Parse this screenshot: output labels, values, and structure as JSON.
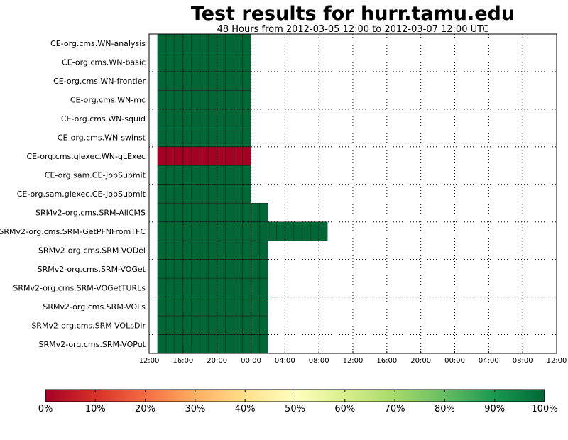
{
  "title": "Test results for hurr.tamu.edu",
  "subtitle": "48 Hours from 2012-03-05 12:00 to 2012-03-07 12:00 UTC",
  "chart_data": {
    "type": "heatmap",
    "x_range_hours": [
      0,
      48
    ],
    "x_tick_labels": [
      "12:00",
      "16:00",
      "20:00",
      "00:00",
      "04:00",
      "08:00",
      "12:00",
      "16:00",
      "20:00",
      "00:00",
      "04:00",
      "08:00",
      "12:00"
    ],
    "grid": true,
    "rows": [
      {
        "name": "CE-org.cms.WN-analysis",
        "start_hour": 1,
        "end_hour": 12,
        "value": 100
      },
      {
        "name": "CE-org.cms.WN-basic",
        "start_hour": 1,
        "end_hour": 12,
        "value": 100
      },
      {
        "name": "CE-org.cms.WN-frontier",
        "start_hour": 1,
        "end_hour": 12,
        "value": 100
      },
      {
        "name": "CE-org.cms.WN-mc",
        "start_hour": 1,
        "end_hour": 12,
        "value": 100
      },
      {
        "name": "CE-org.cms.WN-squid",
        "start_hour": 1,
        "end_hour": 12,
        "value": 100
      },
      {
        "name": "CE-org.cms.WN-swinst",
        "start_hour": 1,
        "end_hour": 12,
        "value": 100
      },
      {
        "name": "CE-org.cms.glexec.WN-gLExec",
        "start_hour": 1,
        "end_hour": 12,
        "value": 0
      },
      {
        "name": "CE-org.sam.CE-JobSubmit",
        "start_hour": 1,
        "end_hour": 12,
        "value": 100
      },
      {
        "name": "CE-org.sam.glexec.CE-JobSubmit",
        "start_hour": 1,
        "end_hour": 12,
        "value": 100
      },
      {
        "name": "SRMv2-org.cms.SRM-AllCMS",
        "start_hour": 1,
        "end_hour": 14,
        "value": 100
      },
      {
        "name": "SRMv2-org.cms.SRM-GetPFNFromTFC",
        "start_hour": 1,
        "end_hour": 21,
        "value": 100
      },
      {
        "name": "SRMv2-org.cms.SRM-VODel",
        "start_hour": 1,
        "end_hour": 14,
        "value": 100
      },
      {
        "name": "SRMv2-org.cms.SRM-VOGet",
        "start_hour": 1,
        "end_hour": 14,
        "value": 100
      },
      {
        "name": "SRMv2-org.cms.SRM-VOGetTURLs",
        "start_hour": 1,
        "end_hour": 14,
        "value": 100
      },
      {
        "name": "SRMv2-org.cms.SRM-VOLs",
        "start_hour": 1,
        "end_hour": 14,
        "value": 100
      },
      {
        "name": "SRMv2-org.cms.SRM-VOLsDir",
        "start_hour": 1,
        "end_hour": 14,
        "value": 100
      },
      {
        "name": "SRMv2-org.cms.SRM-VOPut",
        "start_hour": 1,
        "end_hour": 14,
        "value": 100
      }
    ],
    "colorbar": {
      "min": 0,
      "max": 100,
      "tick_labels": [
        "0%",
        "10%",
        "20%",
        "30%",
        "40%",
        "50%",
        "60%",
        "70%",
        "80%",
        "90%",
        "100%"
      ],
      "stops": [
        "#a50026",
        "#d73027",
        "#f46d43",
        "#fdae61",
        "#fee08b",
        "#ffffbf",
        "#d9ef8b",
        "#a6d96a",
        "#66bd63",
        "#1a9850",
        "#006837"
      ]
    }
  }
}
